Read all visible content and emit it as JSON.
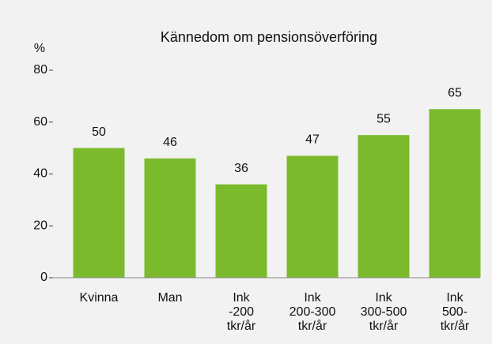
{
  "chart_data": {
    "type": "bar",
    "title": "Kännedom om pensionsöverföring",
    "y_label": "%",
    "categories": [
      "Kvinna",
      "Man",
      "Ink -200 tkr/år",
      "Ink 200-300 tkr/år",
      "Ink 300-500 tkr/år",
      "Ink 500- tkr/år"
    ],
    "values": [
      50,
      46,
      36,
      47,
      55,
      65
    ],
    "color": "#7aba2c",
    "ylim": [
      0,
      80
    ],
    "yticks": [
      0,
      20,
      40,
      60,
      80
    ],
    "grid": false
  }
}
